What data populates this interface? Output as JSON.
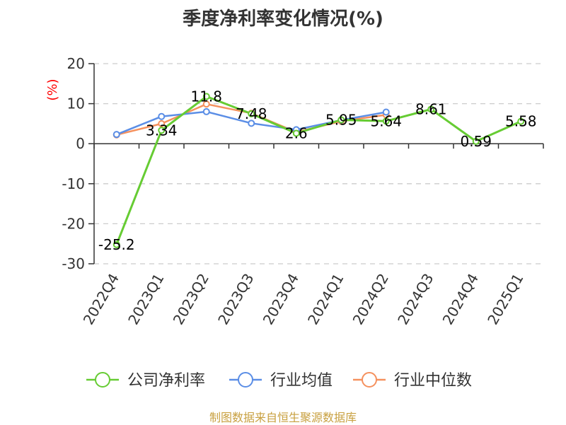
{
  "title": "季度净利率变化情况(%)",
  "source": "制图数据来自恒生聚源数据库",
  "colors": {
    "company": "#66cc33",
    "industry_avg": "#5b8ee6",
    "industry_median": "#f5915e",
    "ylabel": "#ff0000",
    "grid": "#cccccc",
    "source": "#c8a040"
  },
  "chart_data": {
    "type": "line",
    "title": "季度净利率变化情况(%)",
    "ylabel": "(%)",
    "xlabel": "",
    "ylim": [
      -30,
      20
    ],
    "yticks": [
      20,
      10,
      0,
      -10,
      -20,
      -30
    ],
    "grid": "horizontal-dashed",
    "legend_position": "bottom",
    "categories": [
      "2022Q4",
      "2023Q1",
      "2023Q2",
      "2023Q3",
      "2023Q4",
      "2024Q1",
      "2024Q2",
      "2024Q3",
      "2024Q4",
      "2025Q1"
    ],
    "series": [
      {
        "name": "公司净利率",
        "key": "company",
        "values": [
          -25.2,
          3.34,
          11.8,
          7.48,
          2.6,
          5.95,
          5.64,
          8.61,
          0.59,
          5.58
        ],
        "labels": [
          "-25.2",
          "3.34",
          "11.8",
          "7.48",
          "2.6",
          "5.95",
          "5.64",
          "8.61",
          "0.59",
          "5.58"
        ]
      },
      {
        "name": "行业均值",
        "key": "industry_avg",
        "values": [
          2.3,
          6.8,
          8.0,
          5.1,
          3.5,
          5.9,
          7.9,
          null,
          null,
          null
        ]
      },
      {
        "name": "行业中位数",
        "key": "industry_median",
        "values": [
          2.2,
          5.0,
          9.9,
          7.6,
          2.9,
          5.6,
          7.2,
          null,
          null,
          null
        ]
      }
    ]
  }
}
